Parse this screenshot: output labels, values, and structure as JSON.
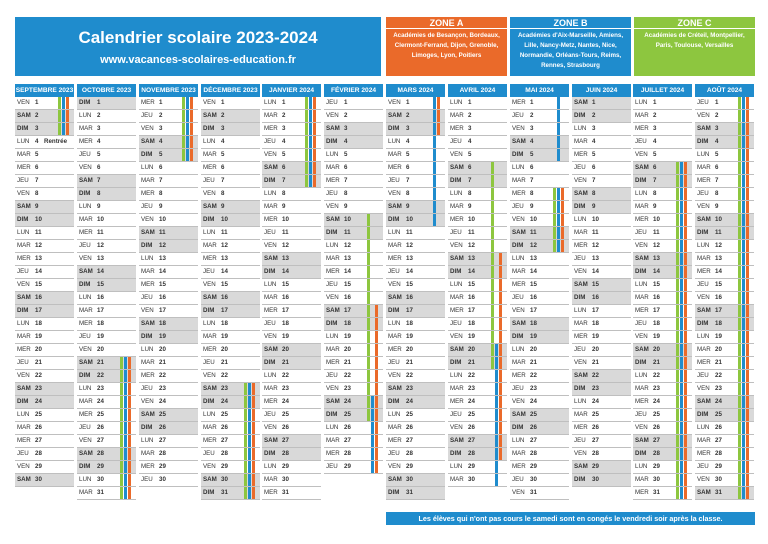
{
  "header": {
    "title": "Calendrier scolaire 2023-2024",
    "url": "www.vacances-scolaires-education.fr"
  },
  "zones": [
    {
      "label": "ZONE A",
      "academies": "Académies de Besançon, Bordeaux, Clermont-Ferrand, Dijon, Grenoble, Limoges, Lyon, Poitiers",
      "color": "#ea6a2a"
    },
    {
      "label": "ZONE B",
      "academies": "Académies d'Aix-Marseille, Amiens, Lille, Nancy-Metz, Nantes, Nice, Normandie, Orléans-Tours, Reims, Rennes, Strasbourg",
      "color": "#1f8ccd"
    },
    {
      "label": "ZONE C",
      "academies": "Académies de Créteil, Montpellier, Paris, Toulouse, Versailles",
      "color": "#8dc63f"
    }
  ],
  "months": [
    {
      "name": "SEPTEMBRE 2023",
      "first_weekday": 4,
      "days": 30
    },
    {
      "name": "OCTOBRE 2023",
      "first_weekday": 6,
      "days": 31
    },
    {
      "name": "NOVEMBRE 2023",
      "first_weekday": 2,
      "days": 30
    },
    {
      "name": "DÉCEMBRE 2023",
      "first_weekday": 4,
      "days": 31
    },
    {
      "name": "JANVIER 2024",
      "first_weekday": 0,
      "days": 31
    },
    {
      "name": "FÉVRIER 2024",
      "first_weekday": 3,
      "days": 29
    },
    {
      "name": "MARS 2024",
      "first_weekday": 4,
      "days": 31
    },
    {
      "name": "AVRIL 2024",
      "first_weekday": 0,
      "days": 30
    },
    {
      "name": "MAI 2024",
      "first_weekday": 2,
      "days": 31
    },
    {
      "name": "JUIN 2024",
      "first_weekday": 5,
      "days": 30
    },
    {
      "name": "JUILLET 2024",
      "first_weekday": 0,
      "days": 31
    },
    {
      "name": "AOÛT 2024",
      "first_weekday": 3,
      "days": 31
    }
  ],
  "day_abbrevs": [
    "LUN",
    "MAR",
    "MER",
    "JEU",
    "VEN",
    "SAM",
    "DIM"
  ],
  "events": [
    {
      "month": 0,
      "day": 4,
      "text": "Rentrée"
    }
  ],
  "holidays": [
    {
      "zone": "A",
      "month": 0,
      "from": 1,
      "to": 3
    },
    {
      "zone": "B",
      "month": 0,
      "from": 1,
      "to": 3
    },
    {
      "zone": "C",
      "month": 0,
      "from": 1,
      "to": 3
    },
    {
      "zone": "A",
      "month": 1,
      "from": 21,
      "to": 31
    },
    {
      "zone": "B",
      "month": 1,
      "from": 21,
      "to": 31
    },
    {
      "zone": "C",
      "month": 1,
      "from": 21,
      "to": 31
    },
    {
      "zone": "A",
      "month": 2,
      "from": 1,
      "to": 5
    },
    {
      "zone": "B",
      "month": 2,
      "from": 1,
      "to": 5
    },
    {
      "zone": "C",
      "month": 2,
      "from": 1,
      "to": 5
    },
    {
      "zone": "A",
      "month": 3,
      "from": 23,
      "to": 31
    },
    {
      "zone": "B",
      "month": 3,
      "from": 23,
      "to": 31
    },
    {
      "zone": "C",
      "month": 3,
      "from": 23,
      "to": 31
    },
    {
      "zone": "A",
      "month": 4,
      "from": 1,
      "to": 7
    },
    {
      "zone": "B",
      "month": 4,
      "from": 1,
      "to": 7
    },
    {
      "zone": "C",
      "month": 4,
      "from": 1,
      "to": 7
    },
    {
      "zone": "A",
      "month": 5,
      "from": 17,
      "to": 29
    },
    {
      "zone": "A",
      "month": 6,
      "from": 1,
      "to": 3
    },
    {
      "zone": "B",
      "month": 5,
      "from": 24,
      "to": 29
    },
    {
      "zone": "B",
      "month": 6,
      "from": 1,
      "to": 10
    },
    {
      "zone": "C",
      "month": 5,
      "from": 10,
      "to": 25
    },
    {
      "zone": "A",
      "month": 7,
      "from": 13,
      "to": 28
    },
    {
      "zone": "B",
      "month": 7,
      "from": 20,
      "to": 30
    },
    {
      "zone": "B",
      "month": 8,
      "from": 1,
      "to": 5
    },
    {
      "zone": "C",
      "month": 7,
      "from": 6,
      "to": 21
    },
    {
      "zone": "A",
      "month": 8,
      "from": 8,
      "to": 12
    },
    {
      "zone": "B",
      "month": 8,
      "from": 8,
      "to": 12
    },
    {
      "zone": "C",
      "month": 8,
      "from": 8,
      "to": 12
    },
    {
      "zone": "A",
      "month": 10,
      "from": 6,
      "to": 31
    },
    {
      "zone": "B",
      "month": 10,
      "from": 6,
      "to": 31
    },
    {
      "zone": "C",
      "month": 10,
      "from": 6,
      "to": 31
    },
    {
      "zone": "A",
      "month": 11,
      "from": 1,
      "to": 31
    },
    {
      "zone": "B",
      "month": 11,
      "from": 1,
      "to": 31
    },
    {
      "zone": "C",
      "month": 11,
      "from": 1,
      "to": 31
    }
  ],
  "footer": "Les élèves qui n'ont pas cours le samedi sont en congés le vendredi soir après la classe."
}
